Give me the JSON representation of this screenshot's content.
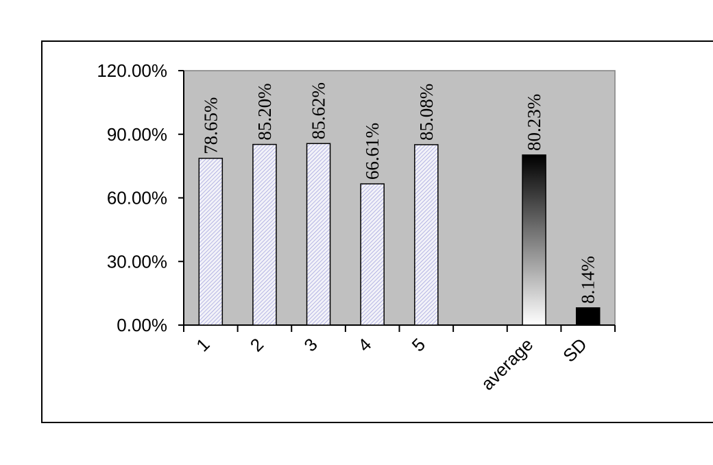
{
  "chart_data": {
    "type": "bar",
    "categories": [
      "1",
      "2",
      "3",
      "4",
      "5",
      "",
      "average",
      "SD"
    ],
    "values": [
      78.65,
      85.2,
      85.62,
      66.61,
      85.08,
      null,
      80.23,
      8.14
    ],
    "data_labels": [
      "78.65%",
      "85.20%",
      "85.62%",
      "66.61%",
      "85.08%",
      "",
      "80.23%",
      "8.14%"
    ],
    "y_ticks": [
      {
        "value": 0,
        "label": "0.00%"
      },
      {
        "value": 30,
        "label": "30.00%"
      },
      {
        "value": 60,
        "label": "60.00%"
      },
      {
        "value": 90,
        "label": "90.00%"
      },
      {
        "value": 120,
        "label": "120.00%"
      }
    ],
    "ylim": [
      0,
      120
    ],
    "title": "",
    "xlabel": "",
    "ylabel": "",
    "grid": false,
    "legend": "none",
    "plot_background": "#c0c0c0",
    "bar_styles": [
      "hatched-blue",
      "hatched-blue",
      "hatched-blue",
      "hatched-blue",
      "hatched-blue",
      "none",
      "gradient-black-white",
      "solid-black"
    ]
  }
}
